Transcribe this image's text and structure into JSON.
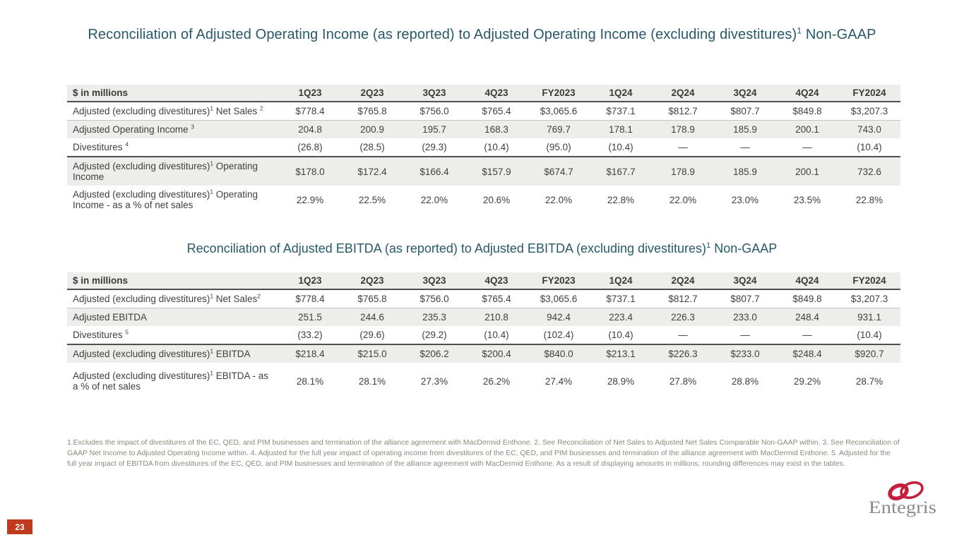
{
  "slide": {
    "title_operating_income": "Reconciliation of Adjusted Operating Income (as reported) to Adjusted Operating Income (excluding divestitures)¹  Non-GAAP",
    "title_ebitda": "Reconciliation of Adjusted EBITDA (as reported) to Adjusted EBITDA (excluding divestitures)¹ Non-GAAP",
    "page_number": "23"
  },
  "tables": [
    {
      "name": "operating-income-reconciliation",
      "columns": [
        "$ in millions",
        "1Q23",
        "2Q23",
        "3Q23",
        "4Q23",
        "FY2023",
        "1Q24",
        "2Q24",
        "3Q24",
        "4Q24",
        "FY2024"
      ],
      "rows": [
        {
          "label": "Adjusted (excluding divestitures)¹ Net Sales ²",
          "values": [
            "$778.4",
            "$765.8",
            "$756.0",
            "$765.4",
            "$3,065.6",
            "$737.1",
            "$812.7",
            "$807.7",
            "$849.8",
            "$3,207.3"
          ]
        },
        {
          "label": "Adjusted Operating Income ³",
          "values": [
            "204.8",
            "200.9",
            "195.7",
            "168.3",
            "769.7",
            "178.1",
            "178.9",
            "185.9",
            "200.1",
            "743.0"
          ]
        },
        {
          "label": "Divestitures ⁴",
          "values": [
            "(26.8)",
            "(28.5)",
            "(29.3)",
            "(10.4)",
            "(95.0)",
            "(10.4)",
            "—",
            "—",
            "—",
            "(10.4)"
          ]
        },
        {
          "label": "Adjusted (excluding divestitures)¹ Operating Income",
          "values": [
            "$178.0",
            "$172.4",
            "$166.4",
            "$157.9",
            "$674.7",
            "$167.7",
            "178.9",
            "185.9",
            "200.1",
            "732.6"
          ]
        },
        {
          "label": "Adjusted (excluding divestitures)¹ Operating Income - as a % of net sales",
          "values": [
            "22.9%",
            "22.5%",
            "22.0%",
            "20.6%",
            "22.0%",
            "22.8%",
            "22.0%",
            "23.0%",
            "23.5%",
            "22.8%"
          ]
        }
      ]
    },
    {
      "name": "ebitda-reconciliation",
      "columns": [
        "$ in millions",
        "1Q23",
        "2Q23",
        "3Q23",
        "4Q23",
        "FY2023",
        "1Q24",
        "2Q24",
        "3Q24",
        "4Q24",
        "FY2024"
      ],
      "rows": [
        {
          "label": "Adjusted (excluding divestitures)¹ Net Sales²",
          "values": [
            "$778.4",
            "$765.8",
            "$756.0",
            "$765.4",
            "$3,065.6",
            "$737.1",
            "$812.7",
            "$807.7",
            "$849.8",
            "$3,207.3"
          ]
        },
        {
          "label": "Adjusted EBITDA",
          "values": [
            "251.5",
            "244.6",
            "235.3",
            "210.8",
            "942.4",
            "223.4",
            "226.3",
            "233.0",
            "248.4",
            "931.1"
          ]
        },
        {
          "label": "Divestitures ⁵",
          "values": [
            "(33.2)",
            "(29.6)",
            "(29.2)",
            "(10.4)",
            "(102.4)",
            "(10.4)",
            "—",
            "—",
            "—",
            "(10.4)"
          ]
        },
        {
          "label": "Adjusted (excluding divestitures)¹ EBITDA",
          "values": [
            "$218.4",
            "$215.0",
            "$206.2",
            "$200.4",
            "$840.0",
            "$213.1",
            "$226.3",
            "$233.0",
            "$248.4",
            "$920.7"
          ]
        },
        {
          "label": "Adjusted (excluding divestitures)¹ EBITDA - as a % of net sales",
          "values": [
            "28.1%",
            "28.1%",
            "27.3%",
            "26.2%",
            "27.4%",
            "28.9%",
            "27.8%",
            "28.8%",
            "29.2%",
            "28.7%"
          ]
        }
      ]
    }
  ],
  "footnotes": "1.Excludes the impact of divestitures of the EC, QED, and PIM businesses and termination of the alliance agreement with MacDermid Enthone.  2. See Reconciliation of Net Sales to Adjusted Net Sales Comparable Non-GAAP within.  3. See Reconciliation of GAAP Net Income to Adjusted Operating Income within.  4. Adjusted for the full year impact of operating income from divestitures of the EC, QED, and PIM businesses and termination of the alliance agreement with MacDermid Enthone.  5. Adjusted for the full year impact of EBITDA from divestitures of the EC, QED, and PIM businesses and termination of the alliance agreement with MacDermid Enthone.  As a result of displaying amounts in millions, rounding differences may exist in the tables.",
  "logo": {
    "wordmark": "Entegris"
  },
  "colors": {
    "title_teal": "#27596B",
    "table_text": "#3f3f3f",
    "row_shade": "#EDEDEB",
    "footnote_tan": "#8C897C",
    "badge_red": "#BF3A1F",
    "logo_red": "#C41F3D",
    "logo_gray": "#8A8A8A"
  }
}
